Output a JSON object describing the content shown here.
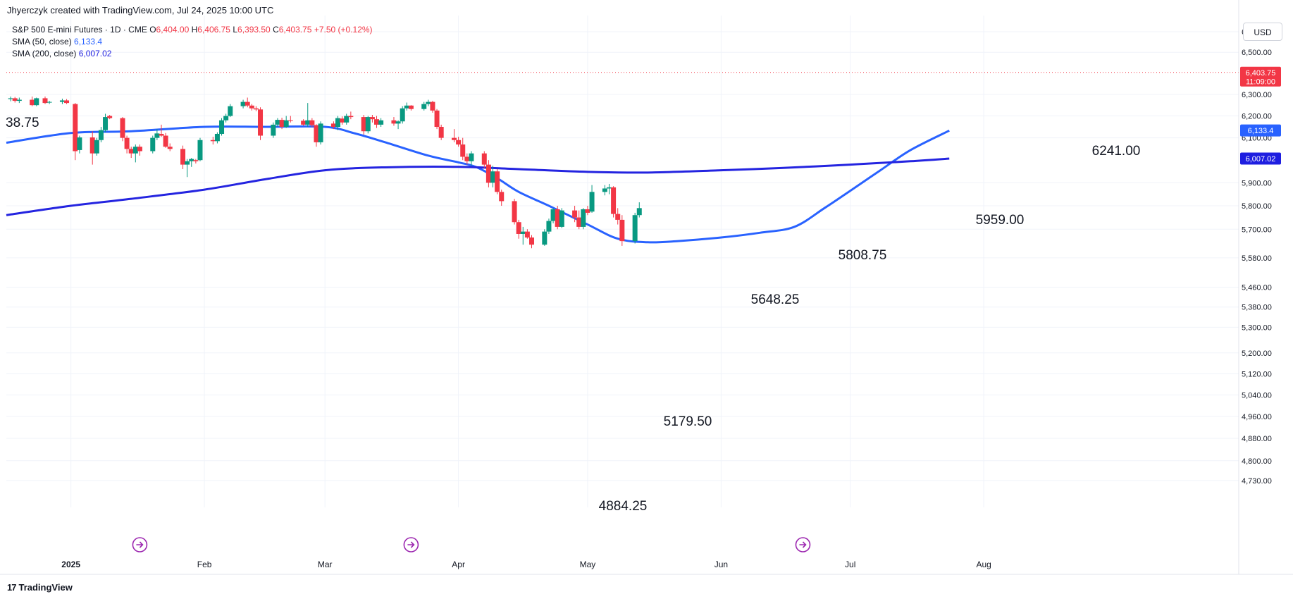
{
  "header": {
    "credit": "Jhyerczyk created with TradingView.com, Jul 24, 2025 10:00 UTC",
    "instrument": "S&P 500 E-mini Futures · 1D · CME",
    "open_label": "O",
    "open": "6,404.00",
    "high_label": "H",
    "high": "6,406.75",
    "low_label": "L",
    "low": "6,393.50",
    "close_label": "C",
    "close": "6,403.75",
    "change": "+7.50 (+0.12%)",
    "sma50_label": "SMA (50, close)",
    "sma50_value": "6,133.4",
    "sma200_label": "SMA (200, close)",
    "sma200_value": "6,007.02"
  },
  "currency": "USD",
  "footer": {
    "logo_mark": "17",
    "logo_text": "TradingView"
  },
  "colors": {
    "up": "#089981",
    "down": "#f23645",
    "sma50": "#2962ff",
    "sma200": "#2424e0",
    "grid": "#f0f3fa",
    "axis_text": "#131722"
  },
  "chart_data": {
    "type": "candlestick",
    "y_scale": "log",
    "ylim": [
      4700,
      6680
    ],
    "y_ticks": [
      6600,
      6500,
      6300,
      6200,
      6100,
      5900,
      5800,
      5700,
      5580,
      5460,
      5380,
      5300,
      5200,
      5120,
      5040,
      4960,
      4880,
      4800,
      4730
    ],
    "y_tick_labels": [
      "6,600.00",
      "6,500.00",
      "6,300.00",
      "6,200.00",
      "6,100.00",
      "5,900.00",
      "5,800.00",
      "5,700.00",
      "5,580.00",
      "5,460.00",
      "5,380.00",
      "5,300.00",
      "5,200.00",
      "5,120.00",
      "5,040.00",
      "4,960.00",
      "4,880.00",
      "4,800.00",
      "4,730.00"
    ],
    "x_range": [
      "2024-12-17",
      "2025-08-18"
    ],
    "x_ticks": [
      {
        "date": "2025-01-01",
        "label": "2025",
        "bold": true
      },
      {
        "date": "2025-02-01",
        "label": "Feb"
      },
      {
        "date": "2025-03-01",
        "label": "Mar"
      },
      {
        "date": "2025-04-01",
        "label": "Apr"
      },
      {
        "date": "2025-05-01",
        "label": "May"
      },
      {
        "date": "2025-06-01",
        "label": "Jun"
      },
      {
        "date": "2025-07-01",
        "label": "Jul"
      },
      {
        "date": "2025-08-01",
        "label": "Aug"
      }
    ],
    "candles": [
      {
        "t": "2024-12-18",
        "o": 6278,
        "h": 6290,
        "l": 6268,
        "c": 6282
      },
      {
        "t": "2024-12-19",
        "o": 6282,
        "h": 6288,
        "l": 6262,
        "c": 6270
      },
      {
        "t": "2024-12-20",
        "o": 6270,
        "h": 6285,
        "l": 6260,
        "c": 6275
      },
      {
        "t": "2024-12-23",
        "o": 6275,
        "h": 6290,
        "l": 6245,
        "c": 6250
      },
      {
        "t": "2024-12-24",
        "o": 6250,
        "h": 6285,
        "l": 6245,
        "c": 6282
      },
      {
        "t": "2024-12-26",
        "o": 6282,
        "h": 6290,
        "l": 6255,
        "c": 6260
      },
      {
        "t": "2024-12-27",
        "o": 6262,
        "h": 6270,
        "l": 6255,
        "c": 6265
      },
      {
        "t": "2024-12-30",
        "o": 6265,
        "h": 6280,
        "l": 6255,
        "c": 6272
      },
      {
        "t": "2024-12-31",
        "o": 6272,
        "h": 6278,
        "l": 6255,
        "c": 6260
      },
      {
        "t": "2025-01-02",
        "o": 6255,
        "h": 6260,
        "l": 6000,
        "c": 6040
      },
      {
        "t": "2025-01-03",
        "o": 6045,
        "h": 6110,
        "l": 6030,
        "c": 6102
      },
      {
        "t": "2025-01-06",
        "o": 6102,
        "h": 6130,
        "l": 5980,
        "c": 6030
      },
      {
        "t": "2025-01-07",
        "o": 6030,
        "h": 6100,
        "l": 6020,
        "c": 6090
      },
      {
        "t": "2025-01-08",
        "o": 6090,
        "h": 6150,
        "l": 6080,
        "c": 6135
      },
      {
        "t": "2025-01-09",
        "o": 6135,
        "h": 6210,
        "l": 6125,
        "c": 6195
      },
      {
        "t": "2025-01-10",
        "o": 6200,
        "h": 6205,
        "l": 6185,
        "c": 6190
      },
      {
        "t": "2025-01-13",
        "o": 6190,
        "h": 6195,
        "l": 6085,
        "c": 6100
      },
      {
        "t": "2025-01-14",
        "o": 6100,
        "h": 6110,
        "l": 6030,
        "c": 6050
      },
      {
        "t": "2025-01-15",
        "o": 6050,
        "h": 6060,
        "l": 6010,
        "c": 6030
      },
      {
        "t": "2025-01-16",
        "o": 6030,
        "h": 6070,
        "l": 5990,
        "c": 6060
      },
      {
        "t": "2025-01-17",
        "o": 6060,
        "h": 6070,
        "l": 6020,
        "c": 6040
      },
      {
        "t": "2025-01-20",
        "o": 6040,
        "h": 6110,
        "l": 6030,
        "c": 6100
      },
      {
        "t": "2025-01-21",
        "o": 6100,
        "h": 6140,
        "l": 6090,
        "c": 6120
      },
      {
        "t": "2025-01-22",
        "o": 6118,
        "h": 6160,
        "l": 6105,
        "c": 6110
      },
      {
        "t": "2025-01-23",
        "o": 6110,
        "h": 6122,
        "l": 6055,
        "c": 6060
      },
      {
        "t": "2025-01-24",
        "o": 6060,
        "h": 6075,
        "l": 6040,
        "c": 6050
      },
      {
        "t": "2025-01-27",
        "o": 6050,
        "h": 6065,
        "l": 5960,
        "c": 5980
      },
      {
        "t": "2025-01-28",
        "o": 5980,
        "h": 6005,
        "l": 5925,
        "c": 5995
      },
      {
        "t": "2025-01-29",
        "o": 5995,
        "h": 6010,
        "l": 5970,
        "c": 6005
      },
      {
        "t": "2025-01-30",
        "o": 6000,
        "h": 6005,
        "l": 5985,
        "c": 5995
      },
      {
        "t": "2025-01-31",
        "o": 6000,
        "h": 6100,
        "l": 5995,
        "c": 6090
      },
      {
        "t": "2025-02-03",
        "o": 6090,
        "h": 6105,
        "l": 6070,
        "c": 6085
      },
      {
        "t": "2025-02-04",
        "o": 6085,
        "h": 6125,
        "l": 6075,
        "c": 6118
      },
      {
        "t": "2025-02-05",
        "o": 6118,
        "h": 6190,
        "l": 6110,
        "c": 6180
      },
      {
        "t": "2025-02-06",
        "o": 6180,
        "h": 6210,
        "l": 6170,
        "c": 6200
      },
      {
        "t": "2025-02-07",
        "o": 6200,
        "h": 6255,
        "l": 6195,
        "c": 6245
      },
      {
        "t": "2025-02-10",
        "o": 6245,
        "h": 6275,
        "l": 6235,
        "c": 6265
      },
      {
        "t": "2025-02-11",
        "o": 6265,
        "h": 6285,
        "l": 6240,
        "c": 6248
      },
      {
        "t": "2025-02-12",
        "o": 6248,
        "h": 6255,
        "l": 6225,
        "c": 6235
      },
      {
        "t": "2025-02-13",
        "o": 6235,
        "h": 6245,
        "l": 6222,
        "c": 6230
      },
      {
        "t": "2025-02-14",
        "o": 6230,
        "h": 6240,
        "l": 6090,
        "c": 6110
      },
      {
        "t": "2025-02-17",
        "o": 6110,
        "h": 6170,
        "l": 6100,
        "c": 6160
      },
      {
        "t": "2025-02-18",
        "o": 6160,
        "h": 6190,
        "l": 6150,
        "c": 6182
      },
      {
        "t": "2025-02-19",
        "o": 6182,
        "h": 6192,
        "l": 6140,
        "c": 6150
      },
      {
        "t": "2025-02-20",
        "o": 6150,
        "h": 6200,
        "l": 6145,
        "c": 6180
      },
      {
        "t": "2025-02-21",
        "o": 6180,
        "h": 6200,
        "l": 6170,
        "c": 6178
      },
      {
        "t": "2025-02-24",
        "o": 6178,
        "h": 6185,
        "l": 6155,
        "c": 6160
      },
      {
        "t": "2025-02-25",
        "o": 6160,
        "h": 6260,
        "l": 6150,
        "c": 6180
      },
      {
        "t": "2025-02-26",
        "o": 6180,
        "h": 6190,
        "l": 6150,
        "c": 6158
      },
      {
        "t": "2025-02-27",
        "o": 6158,
        "h": 6162,
        "l": 6060,
        "c": 6080
      },
      {
        "t": "2025-02-28",
        "o": 6080,
        "h": 6175,
        "l": 6070,
        "c": 6165
      },
      {
        "t": "2025-03-03",
        "o": 6165,
        "h": 6175,
        "l": 6140,
        "c": 6150
      },
      {
        "t": "2025-03-04",
        "o": 6150,
        "h": 6200,
        "l": 6135,
        "c": 6190
      },
      {
        "t": "2025-03-05",
        "o": 6188,
        "h": 6198,
        "l": 6160,
        "c": 6170
      },
      {
        "t": "2025-03-06",
        "o": 6170,
        "h": 6210,
        "l": 6160,
        "c": 6200
      },
      {
        "t": "2025-03-07",
        "o": 6200,
        "h": 6220,
        "l": 6185,
        "c": 6195
      },
      {
        "t": "2025-03-10",
        "o": 6195,
        "h": 6205,
        "l": 6115,
        "c": 6130
      },
      {
        "t": "2025-03-11",
        "o": 6130,
        "h": 6200,
        "l": 6120,
        "c": 6195
      },
      {
        "t": "2025-03-12",
        "o": 6195,
        "h": 6205,
        "l": 6170,
        "c": 6185
      },
      {
        "t": "2025-03-13",
        "o": 6185,
        "h": 6200,
        "l": 6145,
        "c": 6160
      },
      {
        "t": "2025-03-14",
        "o": 6160,
        "h": 6190,
        "l": 6150,
        "c": 6180
      },
      {
        "t": "2025-03-17",
        "o": 6180,
        "h": 6195,
        "l": 6155,
        "c": 6165
      },
      {
        "t": "2025-03-18",
        "o": 6165,
        "h": 6180,
        "l": 6140,
        "c": 6175
      },
      {
        "t": "2025-03-19",
        "o": 6175,
        "h": 6245,
        "l": 6165,
        "c": 6235
      },
      {
        "t": "2025-03-20",
        "o": 6235,
        "h": 6262,
        "l": 6225,
        "c": 6248
      },
      {
        "t": "2025-03-21",
        "o": 6248,
        "h": 6250,
        "l": 6225,
        "c": 6232
      },
      {
        "t": "2025-03-24",
        "o": 6232,
        "h": 6265,
        "l": 6225,
        "c": 6255
      },
      {
        "t": "2025-03-25",
        "o": 6255,
        "h": 6275,
        "l": 6245,
        "c": 6265
      },
      {
        "t": "2025-03-26",
        "o": 6265,
        "h": 6270,
        "l": 6215,
        "c": 6225
      },
      {
        "t": "2025-03-27",
        "o": 6225,
        "h": 6232,
        "l": 6140,
        "c": 6150
      },
      {
        "t": "2025-03-28",
        "o": 6150,
        "h": 6160,
        "l": 6090,
        "c": 6100
      },
      {
        "t": "2025-03-31",
        "o": 6100,
        "h": 6140,
        "l": 6080,
        "c": 6090
      },
      {
        "t": "2025-04-01",
        "o": 6090,
        "h": 6105,
        "l": 6060,
        "c": 6070
      },
      {
        "t": "2025-04-02",
        "o": 6070,
        "h": 6100,
        "l": 6000,
        "c": 6015
      },
      {
        "t": "2025-04-03",
        "o": 6015,
        "h": 6030,
        "l": 5980,
        "c": 5995
      },
      {
        "t": "2025-04-04",
        "o": 5995,
        "h": 6040,
        "l": 5975,
        "c": 6030
      },
      {
        "t": "2025-04-07",
        "o": 6030,
        "h": 6040,
        "l": 5965,
        "c": 5980
      },
      {
        "t": "2025-04-08",
        "o": 5980,
        "h": 6000,
        "l": 5880,
        "c": 5900
      },
      {
        "t": "2025-04-09",
        "o": 5900,
        "h": 5975,
        "l": 5880,
        "c": 5950
      },
      {
        "t": "2025-04-10",
        "o": 5950,
        "h": 5960,
        "l": 5850,
        "c": 5860
      },
      {
        "t": "2025-04-11",
        "o": 5860,
        "h": 5870,
        "l": 5800,
        "c": 5820
      },
      {
        "t": "2025-04-14",
        "o": 5820,
        "h": 5830,
        "l": 5720,
        "c": 5730
      },
      {
        "t": "2025-04-15",
        "o": 5730,
        "h": 5740,
        "l": 5660,
        "c": 5680
      },
      {
        "t": "2025-04-16",
        "o": 5680,
        "h": 5710,
        "l": 5635,
        "c": 5690
      },
      {
        "t": "2025-04-17",
        "o": 5690,
        "h": 5700,
        "l": 5660,
        "c": 5665
      },
      {
        "t": "2025-04-18",
        "o": 5665,
        "h": 5675,
        "l": 5620,
        "c": 5635
      },
      {
        "t": "2025-04-21",
        "o": 5635,
        "h": 5700,
        "l": 5630,
        "c": 5690
      },
      {
        "t": "2025-04-22",
        "o": 5690,
        "h": 5745,
        "l": 5680,
        "c": 5735
      },
      {
        "t": "2025-04-23",
        "o": 5735,
        "h": 5790,
        "l": 5725,
        "c": 5785
      },
      {
        "t": "2025-04-24",
        "o": 5785,
        "h": 5800,
        "l": 5700,
        "c": 5710
      },
      {
        "t": "2025-04-25",
        "o": 5710,
        "h": 5790,
        "l": 5705,
        "c": 5780
      },
      {
        "t": "2025-04-28",
        "o": 5780,
        "h": 5800,
        "l": 5730,
        "c": 5750
      },
      {
        "t": "2025-04-29",
        "o": 5750,
        "h": 5780,
        "l": 5700,
        "c": 5710
      },
      {
        "t": "2025-04-30",
        "o": 5710,
        "h": 5790,
        "l": 5700,
        "c": 5785
      },
      {
        "t": "2025-05-01",
        "o": 5785,
        "h": 5800,
        "l": 5760,
        "c": 5770
      },
      {
        "t": "2025-05-02",
        "o": 5775,
        "h": 5890,
        "l": 5770,
        "c": 5860
      },
      {
        "t": "2025-05-05",
        "o": 5860,
        "h": 5890,
        "l": 5845,
        "c": 5875
      },
      {
        "t": "2025-05-06",
        "o": 5875,
        "h": 5895,
        "l": 5850,
        "c": 5880
      },
      {
        "t": "2025-05-07",
        "o": 5880,
        "h": 5885,
        "l": 5750,
        "c": 5765
      },
      {
        "t": "2025-05-08",
        "o": 5765,
        "h": 5790,
        "l": 5720,
        "c": 5740
      },
      {
        "t": "2025-05-09",
        "o": 5740,
        "h": 5760,
        "l": 5630,
        "c": 5650
      },
      {
        "t": "2025-05-12",
        "o": 5650,
        "h": 5770,
        "l": 5640,
        "c": 5760
      },
      {
        "t": "2025-05-13",
        "o": 5760,
        "h": 5815,
        "l": 5750,
        "c": 5790
      }
    ],
    "series": [
      {
        "name": "SMA (50, close)",
        "color": "#2962ff",
        "last": 6133.4,
        "x": [
          "2024-12-17",
          "2025-01-01",
          "2025-01-15",
          "2025-02-01",
          "2025-02-15",
          "2025-03-01",
          "2025-03-08",
          "2025-03-15",
          "2025-03-25",
          "2025-04-01",
          "2025-04-05",
          "2025-04-10",
          "2025-04-15",
          "2025-04-22",
          "2025-05-01",
          "2025-05-08",
          "2025-05-15",
          "2025-05-22",
          "2025-06-01",
          "2025-06-10",
          "2025-06-18",
          "2025-06-25",
          "2025-07-01",
          "2025-07-08",
          "2025-07-15",
          "2025-07-24"
        ],
        "values": [
          6078,
          6122,
          6130,
          6150,
          6150,
          6150,
          6120,
          6080,
          6020,
          5990,
          5970,
          5920,
          5860,
          5800,
          5720,
          5660,
          5645,
          5650,
          5665,
          5685,
          5710,
          5790,
          5865,
          5955,
          6045,
          6133
        ]
      },
      {
        "name": "SMA (200, close)",
        "color": "#2424e0",
        "last": 6007.02,
        "x": [
          "2024-12-17",
          "2025-01-01",
          "2025-01-15",
          "2025-02-01",
          "2025-02-15",
          "2025-03-01",
          "2025-03-15",
          "2025-04-01",
          "2025-04-15",
          "2025-05-01",
          "2025-05-15",
          "2025-06-01",
          "2025-06-15",
          "2025-07-01",
          "2025-07-15",
          "2025-07-24"
        ],
        "values": [
          5760,
          5800,
          5830,
          5870,
          5915,
          5955,
          5968,
          5970,
          5960,
          5948,
          5945,
          5955,
          5965,
          5980,
          5995,
          6007
        ]
      }
    ],
    "annotations": [
      {
        "label": "38.75"
      },
      {
        "label": "4884.25"
      },
      {
        "label": "5179.50"
      },
      {
        "label": "5648.25"
      },
      {
        "label": "5808.75"
      },
      {
        "label": "5959.00"
      },
      {
        "label": "6241.00"
      }
    ],
    "price_badges": [
      {
        "text": "6,403.75",
        "sub": "11:09:00",
        "value": 6403.75,
        "color": "#f23645"
      },
      {
        "text": "6,133.4",
        "value": 6133.4,
        "color": "#2962ff"
      },
      {
        "text": "6,007.02",
        "value": 6007.02,
        "color": "#1e1ee0"
      }
    ],
    "last_price": 6403.75,
    "event_markers": [
      "2025-01-17",
      "2025-03-21",
      "2025-06-20"
    ]
  }
}
